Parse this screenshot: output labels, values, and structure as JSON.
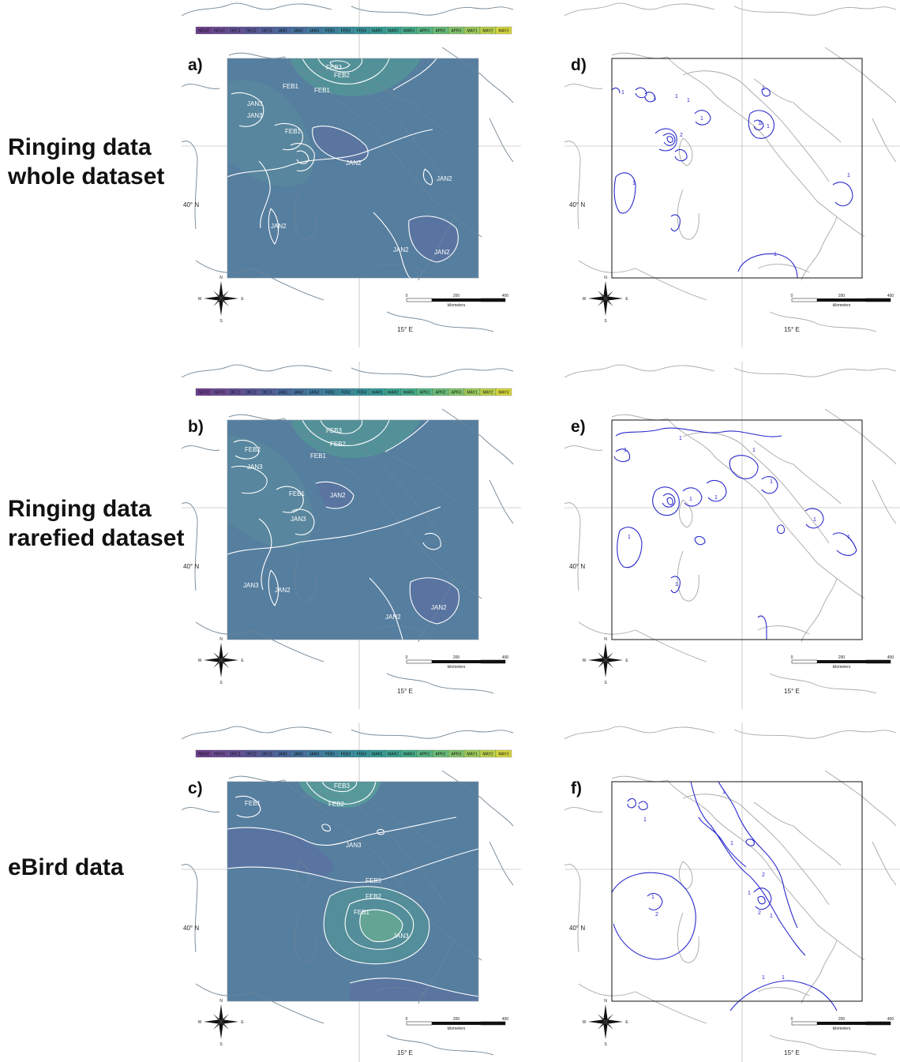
{
  "colors": {
    "coast": "#a8a8a8",
    "frame": "#111111",
    "contour_white": "#ffffff",
    "contour_blue": "#2a2acc"
  },
  "row_labels": [
    {
      "line1": "Ringing data",
      "line2": "whole dataset"
    },
    {
      "line1": "Ringing data",
      "line2": "rarefied dataset"
    },
    {
      "line1": "eBird data",
      "line2": ""
    }
  ],
  "legend": [
    "NOV2",
    "NOV3",
    "DEC1",
    "DEC2",
    "DEC3",
    "JAN1",
    "JAN2",
    "JAN3",
    "FEB1",
    "FEB2",
    "FEB3",
    "MAR1",
    "MAR2",
    "MAR3",
    "APR1",
    "APR2",
    "APR3",
    "MAY1",
    "MAY2",
    "MAY3"
  ],
  "legend_colors": [
    "#6b3f8e",
    "#6b4b93",
    "#634f95",
    "#5b5898",
    "#53609b",
    "#4b689d",
    "#47719e",
    "#427a9e",
    "#3e829e",
    "#3b8b9d",
    "#38939b",
    "#389c98",
    "#3da594",
    "#46ad8d",
    "#55b584",
    "#6abd78",
    "#82c46b",
    "#9dcb5c",
    "#bad24c",
    "#d6d63f"
  ],
  "coords": {
    "lat": "40° N",
    "lon": "15° E"
  },
  "scalebar": {
    "t0": "0",
    "t1": "200",
    "t2": "400",
    "unit": "kilometers"
  },
  "compass": {
    "n": "N",
    "s": "S",
    "e": "E",
    "w": "W"
  },
  "panels": [
    {
      "id": "a",
      "label": "a)",
      "style": "heat",
      "contour_labels": [
        "FEB2",
        "FEB1",
        "FEB1",
        "JAN3",
        "FEB1",
        "JAN3",
        "JAN2",
        "JAN2",
        "JAN2",
        "JAN2",
        "JAN2",
        "FEB3"
      ]
    },
    {
      "id": "b",
      "label": "b)",
      "style": "heat",
      "contour_labels": [
        "FEB2",
        "FEB1",
        "JAN3",
        "FEB1",
        "JAN2",
        "JAN3",
        "JAN3",
        "JAN2",
        "JAN2",
        "JAN2",
        "FEB2",
        "FEB3"
      ]
    },
    {
      "id": "c",
      "label": "c)",
      "style": "heat",
      "contour_labels": [
        "FEB3",
        "FEB1",
        "FEB2",
        "JAN3",
        "FEB3",
        "FEB2",
        "FEB1",
        "JAN3"
      ]
    },
    {
      "id": "d",
      "label": "d)",
      "style": "blue",
      "contour_labels": [
        "1",
        "1",
        "1",
        "1",
        "1",
        "1",
        "1",
        "2",
        "1",
        "1",
        "1",
        "1",
        "1"
      ]
    },
    {
      "id": "e",
      "label": "e)",
      "style": "blue",
      "contour_labels": [
        "1",
        "1",
        "1",
        "1",
        "1",
        "1",
        "1",
        "1",
        "1",
        "1"
      ]
    },
    {
      "id": "f",
      "label": "f)",
      "style": "blue",
      "contour_labels": [
        "1",
        "1",
        "1",
        "2",
        "1",
        "2",
        "1",
        "1",
        "2",
        "1",
        "1"
      ]
    }
  ]
}
